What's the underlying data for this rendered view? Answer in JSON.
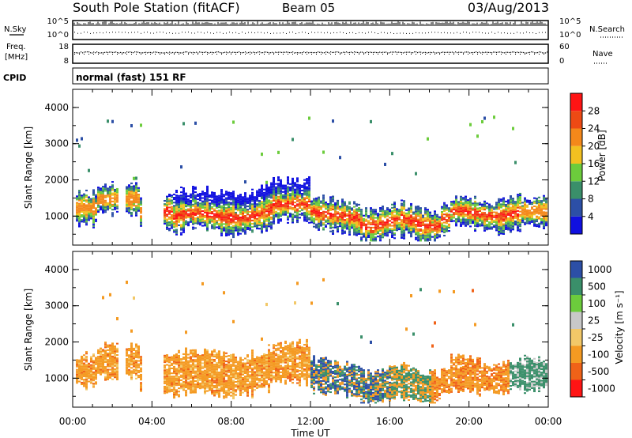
{
  "header": {
    "station": "South Pole Station (fitACF)",
    "beam": "Beam 05",
    "date": "03/Aug/2013"
  },
  "top_panels": {
    "nsky_label": "N.Sky",
    "nsearch_label": "N.Search",
    "noise_tick_hi": "10^5",
    "noise_tick_lo": "10^0",
    "freq_label_1": "Freq.",
    "freq_label_2": "[MHz]",
    "freq_tick_hi": "18",
    "freq_tick_lo": "8",
    "nave_label": "Nave",
    "nave_tick_hi": "60",
    "nave_tick_lo": "0",
    "cpid_label": "CPID",
    "cpid_text": "normal (fast) 151 RF"
  },
  "colors": {
    "power_scale": [
      "#1010e0",
      "#2c4fa6",
      "#3a8f6a",
      "#6ccc3c",
      "#f2c020",
      "#f4881a",
      "#ee4a14",
      "#ff1414"
    ],
    "velocity_scale": [
      "#ff1414",
      "#f06218",
      "#f49a22",
      "#f2c868",
      "#c8c8c8",
      "#6ccc3c",
      "#3a8f6a",
      "#2c4fa6"
    ]
  },
  "chart_data": [
    {
      "type": "heatmap",
      "name": "power",
      "xlabel": "",
      "ylabel": "Slant Range [km]",
      "x_ticks": [
        "00:00",
        "04:00",
        "08:00",
        "12:00",
        "16:00",
        "20:00",
        "00:00"
      ],
      "y_ticks": [
        "1000",
        "2000",
        "3000",
        "4000"
      ],
      "ylim": [
        200,
        4500
      ],
      "colorbar": {
        "label": "Power [dB]",
        "ticks": [
          "4",
          "8",
          "12",
          "16",
          "20",
          "24",
          "28"
        ]
      }
    },
    {
      "type": "heatmap",
      "name": "velocity",
      "xlabel": "Time UT",
      "ylabel": "Slant Range [km]",
      "x_ticks": [
        "00:00",
        "04:00",
        "08:00",
        "12:00",
        "16:00",
        "20:00",
        "00:00"
      ],
      "y_ticks": [
        "1000",
        "2000",
        "3000",
        "4000"
      ],
      "ylim": [
        200,
        4500
      ],
      "colorbar": {
        "label": "Velocity [m s⁻¹]",
        "ticks": [
          "1000",
          "500",
          "100",
          "25",
          "-25",
          "-100",
          "-500",
          "-1000"
        ]
      }
    }
  ]
}
